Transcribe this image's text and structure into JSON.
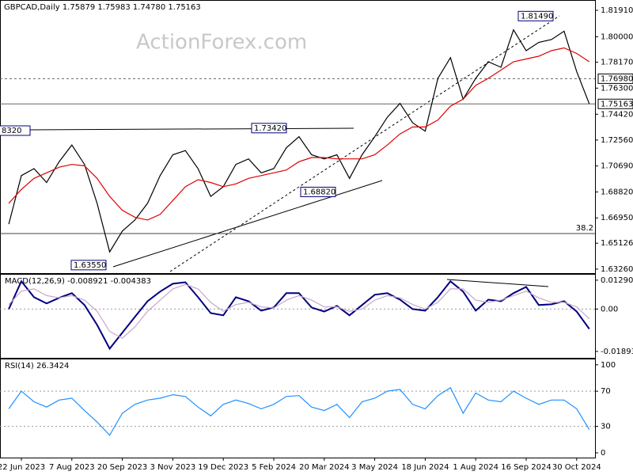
{
  "chart_data": [
    {
      "type": "line",
      "title": "GBPCAD,Daily  1.75879 1.75983 1.74780 1.75163",
      "watermark": "ActionForex.com",
      "categories": [
        null,
        "22 Jun 2023",
        null,
        null,
        null,
        "7 Aug 2023",
        null,
        null,
        null,
        "20 Sep 2023",
        null,
        null,
        null,
        "3 Nov 2023",
        null,
        null,
        null,
        "19 Dec 2023",
        null,
        null,
        null,
        "5 Feb 2024",
        null,
        null,
        null,
        "20 Mar 2024",
        null,
        null,
        null,
        "3 May 2024",
        null,
        null,
        null,
        "18 Jun 2024",
        null,
        null,
        null,
        "1 Aug 2024",
        null,
        null,
        null,
        "16 Sep 2024",
        null,
        null,
        null,
        "30 Oct 2024",
        null
      ],
      "series": [
        {
          "color": "#000000",
          "values": [
            1.665,
            1.7,
            1.705,
            1.695,
            1.71,
            1.722,
            1.708,
            1.68,
            1.645,
            1.66,
            1.668,
            1.68,
            1.7,
            1.715,
            1.718,
            1.705,
            1.685,
            1.692,
            1.708,
            1.712,
            1.702,
            1.705,
            1.72,
            1.728,
            1.715,
            1.712,
            1.715,
            1.698,
            1.715,
            1.728,
            1.742,
            1.752,
            1.738,
            1.732,
            1.77,
            1.785,
            1.755,
            1.77,
            1.782,
            1.778,
            1.805,
            1.79,
            1.796,
            1.798,
            1.804,
            1.775,
            1.75163
          ]
        },
        {
          "color": "#e00000",
          "values": [
            1.68,
            1.69,
            1.698,
            1.702,
            1.706,
            1.708,
            1.707,
            1.698,
            1.685,
            1.675,
            1.67,
            1.668,
            1.672,
            1.682,
            1.692,
            1.697,
            1.695,
            1.692,
            1.694,
            1.698,
            1.7,
            1.702,
            1.704,
            1.71,
            1.713,
            1.713,
            1.712,
            1.712,
            1.712,
            1.715,
            1.722,
            1.73,
            1.735,
            1.735,
            1.74,
            1.75,
            1.755,
            1.765,
            1.77,
            1.776,
            1.782,
            1.784,
            1.786,
            1.79,
            1.792,
            1.788,
            1.782
          ]
        }
      ],
      "ylim": [
        1.6297,
        1.8265
      ],
      "yticks": [
        {
          "value": 1.8191,
          "label": "1.81910"
        },
        {
          "value": 1.8,
          "label": "1.80000"
        },
        {
          "value": 1.7817,
          "label": "1.78170"
        },
        {
          "value": 1.763,
          "label": "1.76300"
        },
        {
          "value": 1.7442,
          "label": "1.74420"
        },
        {
          "value": 1.7256,
          "label": "1.72560"
        },
        {
          "value": 1.7069,
          "label": "1.70690"
        },
        {
          "value": 1.6882,
          "label": "1.68820"
        },
        {
          "value": 1.6695,
          "label": "1.66950"
        },
        1.65126,
        {
          "value": 1.6326,
          "label": "1.63260"
        }
      ],
      "levels": [
        {
          "value": 1.7698,
          "label": "1.76980",
          "style": "dashed"
        },
        {
          "value": 1.75163,
          "label": "1.75163",
          "style": "solid"
        }
      ],
      "fib_level": {
        "ratio": 38.2,
        "price": 1.6582
      },
      "annotations": [
        {
          "value": 1.8149,
          "label": "1.81490"
        },
        {
          "value": 1.7342,
          "label": "1.73420"
        },
        {
          "value": 1.6882,
          "label": "1.68820"
        },
        {
          "value": 1.6355,
          "label": "1.63550"
        }
      ],
      "cut_label": "8320"
    },
    {
      "type": "line",
      "title": "MACD(12,26,9) -0.008921 -0.004383",
      "series": [
        {
          "color": "#000080",
          "values": [
            0,
            0.0124,
            0.0053,
            0.0025,
            0.005,
            0.0071,
            0.0018,
            -0.0071,
            -0.0177,
            -0.0106,
            -0.0035,
            0.0035,
            0.0078,
            0.0113,
            0.012,
            0.0053,
            -0.0018,
            -0.0028,
            0.0053,
            0.0035,
            -0.0007,
            0.0007,
            0.0071,
            0.0071,
            0.0007,
            -0.0011,
            0.0014,
            -0.0028,
            0.0018,
            0.0064,
            0.0071,
            0.0042,
            0,
            -0.0007,
            0.0053,
            0.0124,
            0.0078,
            -0.0007,
            0.0042,
            0.0035,
            0.0071,
            0.0099,
            0.0018,
            0.0021,
            0.0035,
            -0.0011,
            -0.0089
          ]
        },
        {
          "color": "#c8a8c8",
          "values": [
            0.002,
            0.008,
            0.009,
            0.006,
            0.005,
            0.006,
            0.004,
            -0.001,
            -0.01,
            -0.013,
            -0.008,
            -0.001,
            0.004,
            0.009,
            0.011,
            0.009,
            0.003,
            -0.001,
            0.002,
            0.003,
            0.001,
            0.0005,
            0.004,
            0.006,
            0.004,
            0.001,
            0.001,
            -0.001,
            0,
            0.004,
            0.006,
            0.005,
            0.002,
            0,
            0.003,
            0.009,
            0.009,
            0.004,
            0.003,
            0.004,
            0.006,
            0.008,
            0.005,
            0.003,
            0.003,
            0.001,
            -0.0044
          ]
        }
      ],
      "ylim": [
        -0.0218,
        0.0157
      ],
      "yticks": [
        0.012908,
        {
          "value": 0,
          "label": "0.00"
        },
        -0.018933
      ]
    },
    {
      "type": "line",
      "title": "RSI(14) 26.3424",
      "series": [
        {
          "color": "#1e90ff",
          "values": [
            50,
            70,
            58,
            52,
            60,
            62,
            48,
            35,
            20,
            45,
            55,
            60,
            62,
            66,
            64,
            52,
            42,
            55,
            60,
            56,
            50,
            55,
            64,
            65,
            52,
            48,
            55,
            40,
            58,
            62,
            70,
            72,
            55,
            50,
            65,
            74,
            45,
            68,
            60,
            58,
            70,
            62,
            55,
            60,
            60,
            50,
            26.3424
          ]
        }
      ],
      "ylim": [
        -5.4,
        107
      ],
      "yticks": [
        100,
        70,
        30,
        0
      ]
    }
  ]
}
